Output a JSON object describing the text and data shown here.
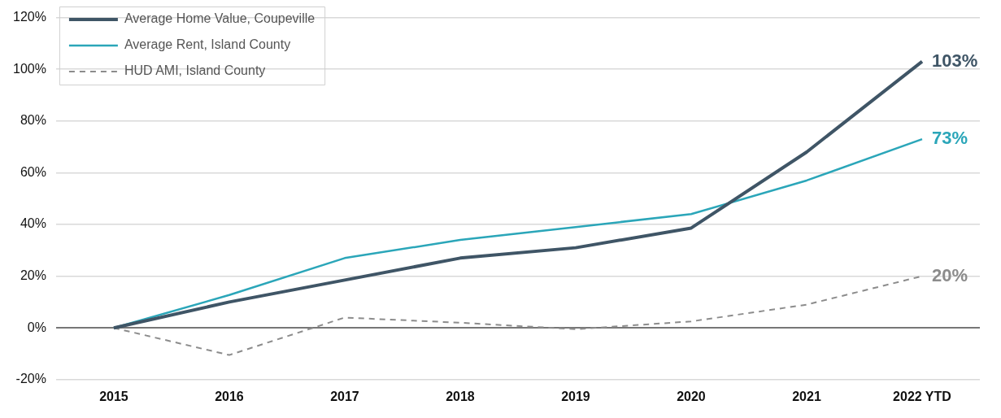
{
  "chart_data": {
    "type": "line",
    "categories": [
      "2015",
      "2016",
      "2017",
      "2018",
      "2019",
      "2020",
      "2021",
      "2022 YTD"
    ],
    "series": [
      {
        "name": "Average Home Value, Coupeville",
        "color": "#3f5566",
        "values": [
          0,
          10,
          18.5,
          27,
          31,
          38.6,
          68,
          103
        ],
        "value_labels": [
          null,
          null,
          null,
          null,
          null,
          null,
          null,
          "103%"
        ]
      },
      {
        "name": "Average Rent, Island County",
        "color": "#2ba6b9",
        "values": [
          0,
          12.7,
          27,
          34,
          39,
          44,
          57,
          73
        ],
        "value_labels": [
          null,
          null,
          null,
          null,
          null,
          null,
          null,
          "73%"
        ]
      },
      {
        "name": "HUD AMI, Island County",
        "color": "#8c8c8c",
        "line_style": "dashed",
        "values": [
          0,
          -10.5,
          4,
          2,
          -0.5,
          2.5,
          9,
          20
        ],
        "value_labels": [
          null,
          null,
          null,
          null,
          null,
          null,
          null,
          "20%"
        ]
      }
    ],
    "ylim": [
      -20,
      120
    ],
    "yticks": [
      {
        "value": -20,
        "label": "-20%"
      },
      {
        "value": 0,
        "label": "0%"
      },
      {
        "value": 20,
        "label": "20%"
      },
      {
        "value": 40,
        "label": "40%"
      },
      {
        "value": 60,
        "label": "60%"
      },
      {
        "value": 80,
        "label": "80%"
      },
      {
        "value": 100,
        "label": "100%"
      },
      {
        "value": 120,
        "label": "120%"
      }
    ],
    "grid": "y",
    "legend": "top left",
    "marker": "none"
  }
}
